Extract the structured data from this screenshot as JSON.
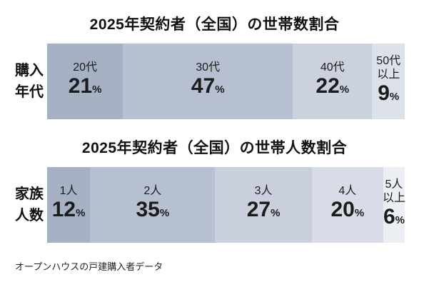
{
  "units": {
    "percent": "%"
  },
  "footer": "オープンハウスの戸建購入者データ",
  "chart_data": [
    {
      "type": "bar",
      "subtype": "stacked-horizontal-100pct",
      "title": "2025年契約者（全国）の世帯数割合",
      "row_label": "購入年代",
      "row_label_lines": [
        "購入",
        "年代"
      ],
      "categories": [
        "20代",
        "30代",
        "40代",
        "50代以上"
      ],
      "categories_display": [
        [
          "20代"
        ],
        [
          "30代"
        ],
        [
          "40代"
        ],
        [
          "50代",
          "以上"
        ]
      ],
      "values": [
        21,
        47,
        22,
        9
      ],
      "unit": "%",
      "colors": [
        "#a6b1c3",
        "#b7c0d0",
        "#cbd2de",
        "#dde1ea"
      ],
      "xlim": [
        0,
        100
      ],
      "legend": "none",
      "grid": "off"
    },
    {
      "type": "bar",
      "subtype": "stacked-horizontal-100pct",
      "title": "2025年契約者（全国）の世帯人数割合",
      "row_label": "家族人数",
      "row_label_lines": [
        "家族",
        "人数"
      ],
      "categories": [
        "1人",
        "2人",
        "3人",
        "4人",
        "5人以上"
      ],
      "categories_display": [
        [
          "1人"
        ],
        [
          "2人"
        ],
        [
          "3人"
        ],
        [
          "4人"
        ],
        [
          "5人",
          "以上"
        ]
      ],
      "values": [
        12,
        35,
        27,
        20,
        6
      ],
      "unit": "%",
      "colors": [
        "#a6b1c3",
        "#b7c0d0",
        "#c9cfdc",
        "#d8dce6",
        "#ebeef3"
      ],
      "xlim": [
        0,
        100
      ],
      "legend": "none",
      "grid": "off"
    }
  ]
}
